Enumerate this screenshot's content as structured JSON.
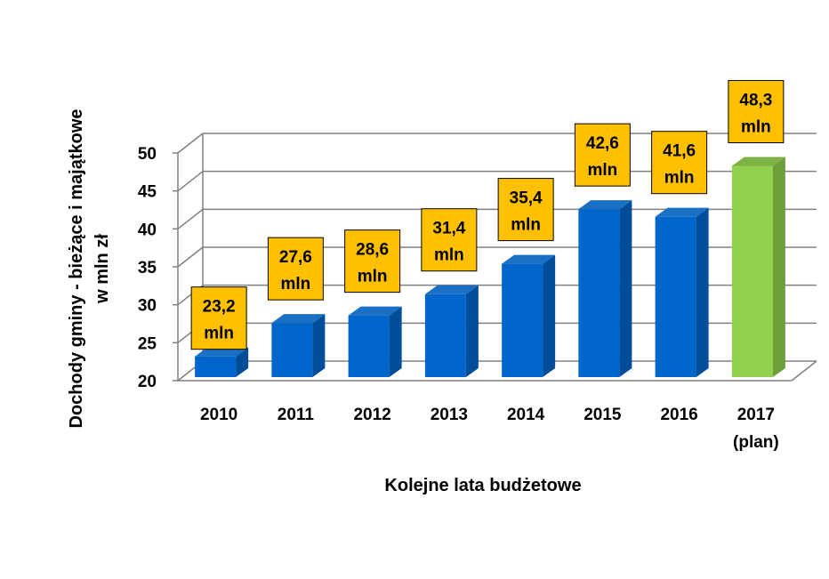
{
  "chart_data": {
    "type": "bar",
    "categories": [
      "2010",
      "2011",
      "2012",
      "2013",
      "2014",
      "2015",
      "2016",
      "2017"
    ],
    "category_sublabels": [
      "",
      "",
      "",
      "",
      "",
      "",
      "",
      "(plan)"
    ],
    "values": [
      23.2,
      27.6,
      28.6,
      31.4,
      35.4,
      42.6,
      41.6,
      48.3
    ],
    "data_labels": [
      [
        "23,2",
        "mln"
      ],
      [
        "27,6",
        "mln"
      ],
      [
        "28,6",
        "mln"
      ],
      [
        "31,4",
        "mln"
      ],
      [
        "35,4",
        "mln"
      ],
      [
        "42,6",
        "mln"
      ],
      [
        "41,6",
        "mln"
      ],
      [
        "48,3",
        "mln"
      ]
    ],
    "xlabel": "Kolejne lata budżetowe",
    "ylabel_lines": [
      "Dochody  gminy - bieżące i majątkowe",
      "w mln zł"
    ],
    "ylim": [
      20,
      50
    ],
    "yticks": [
      20,
      25,
      30,
      35,
      40,
      45,
      50
    ],
    "grid": true,
    "style": "3d-column",
    "colors": {
      "bar_front": "#0066cc",
      "bar_side": "#004d99",
      "bar_top": "#1a70c4",
      "highlight_front": "#92d050",
      "highlight_side": "#6e9e3a",
      "highlight_top": "#7fb244",
      "label_box": "#ffc000",
      "grid": "#808080"
    },
    "highlight_index": 7
  }
}
